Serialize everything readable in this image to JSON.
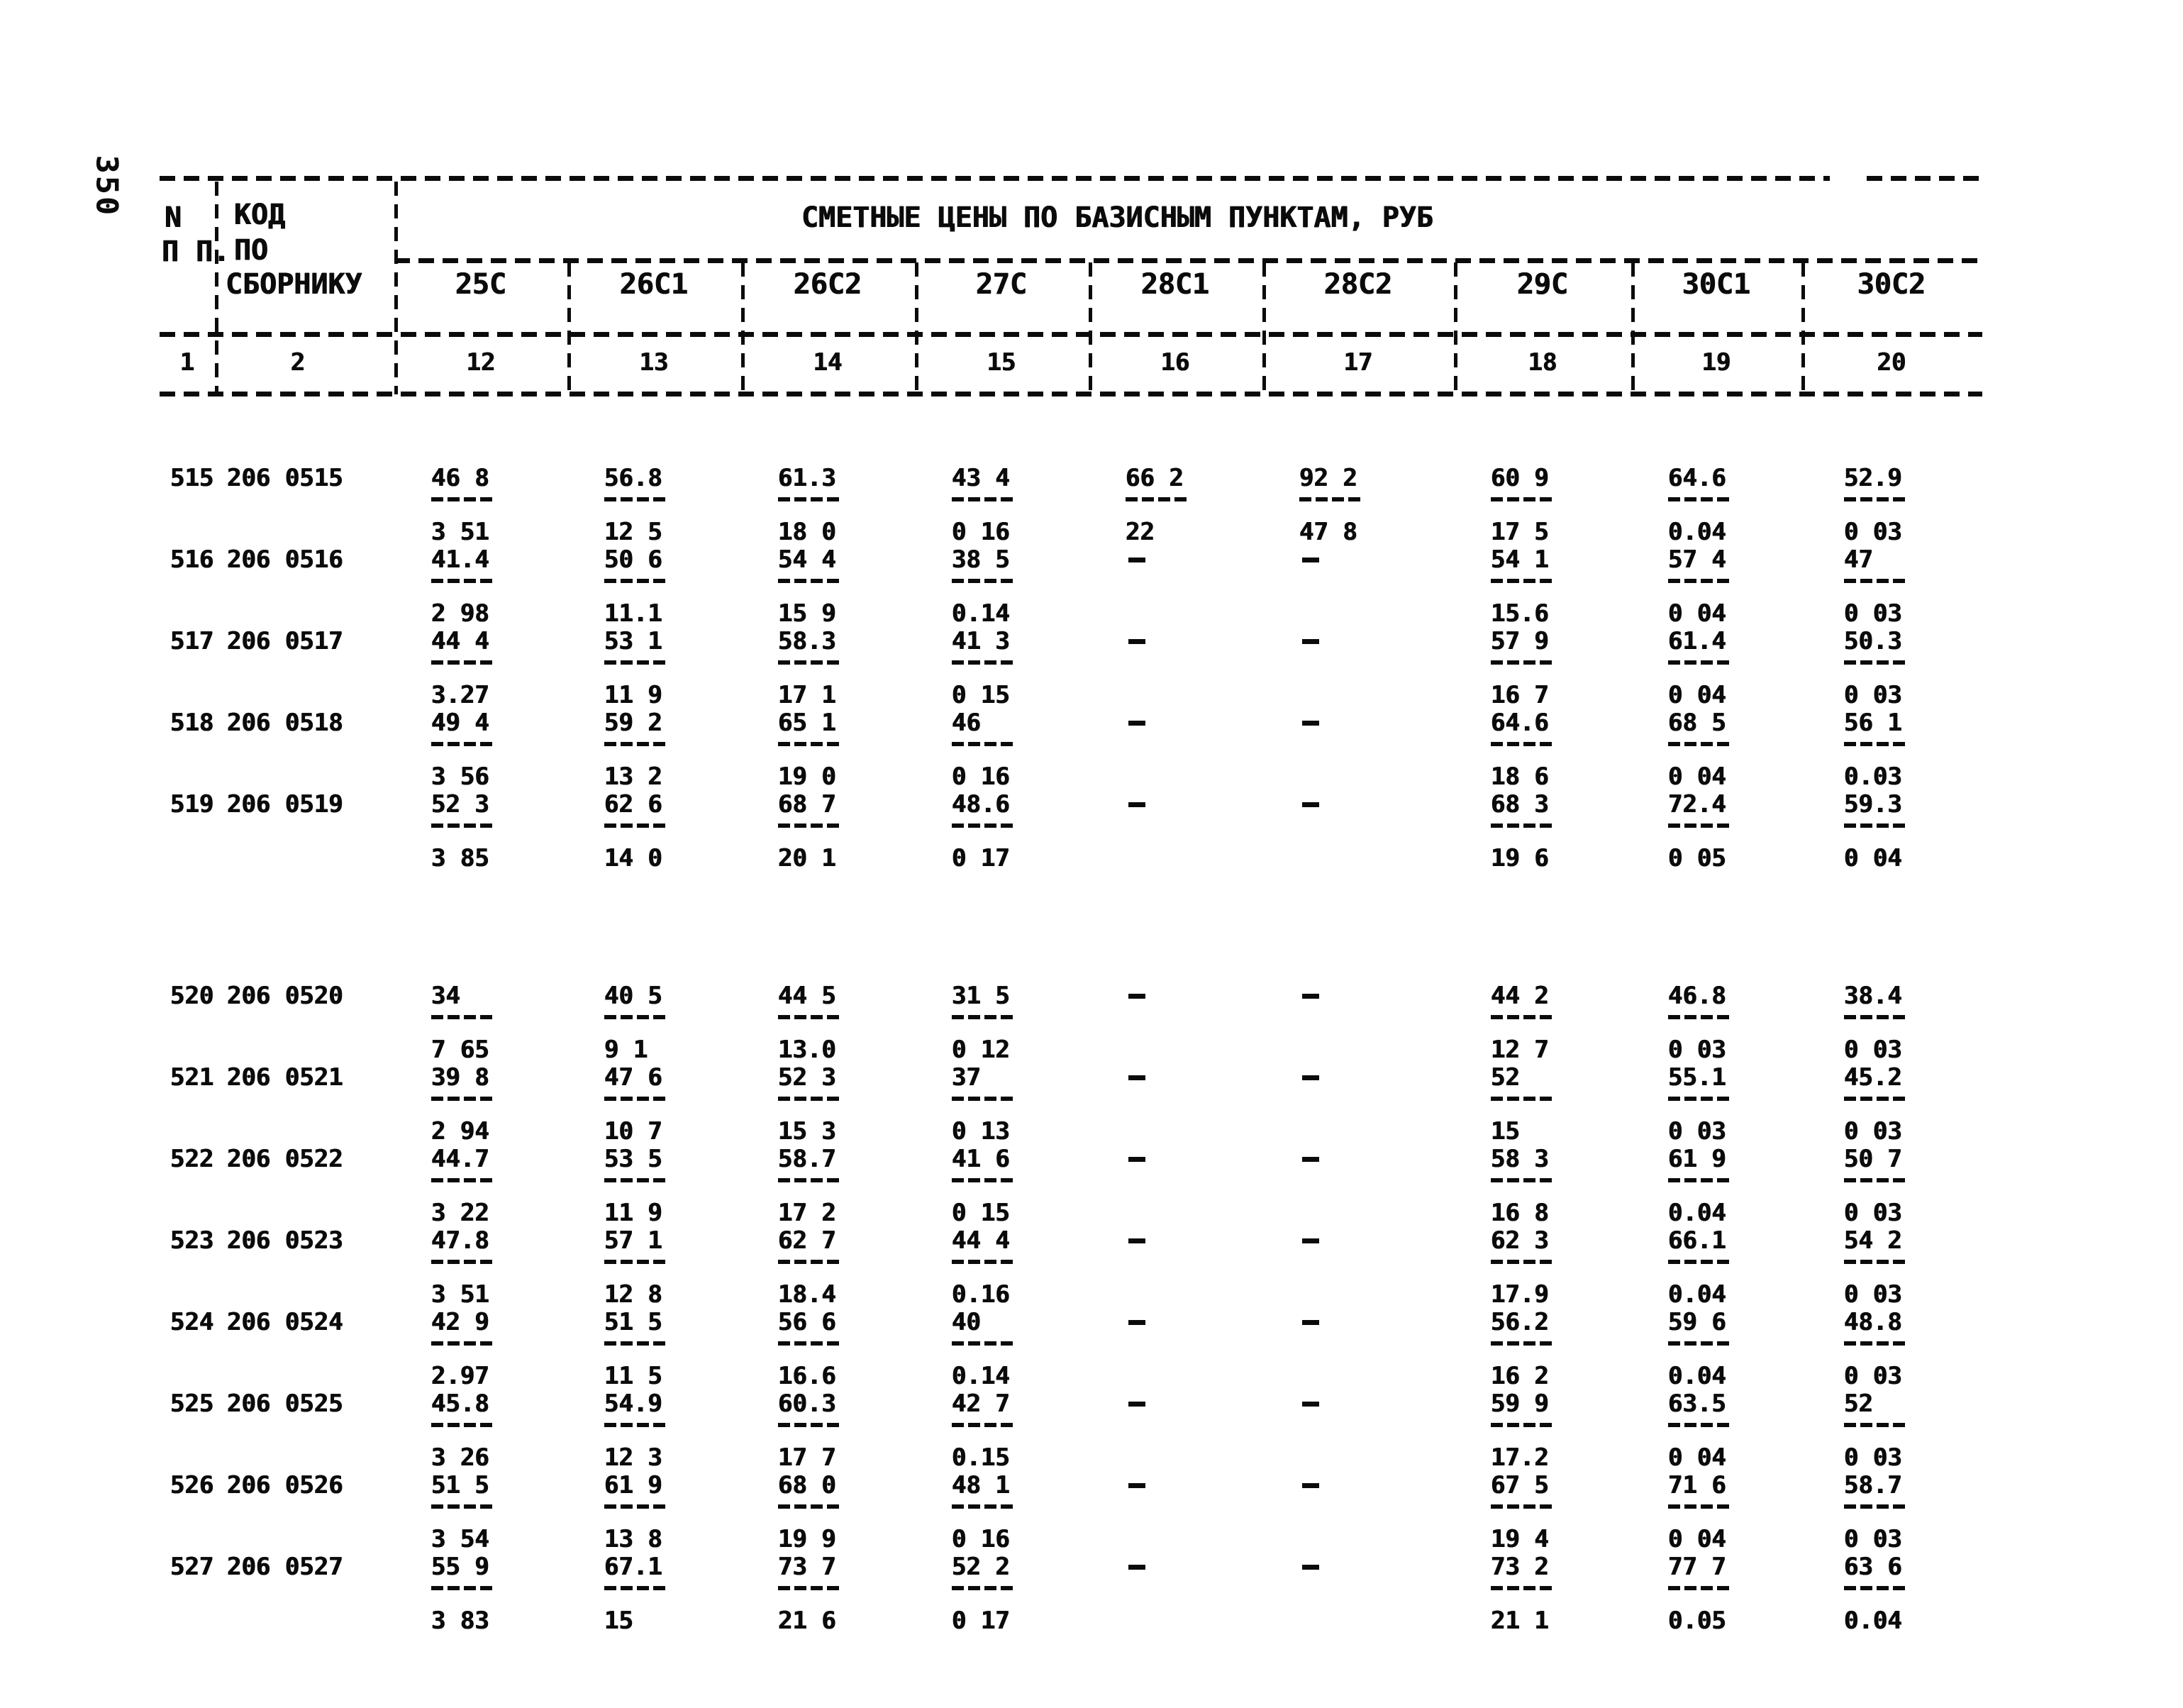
{
  "page_number": "350",
  "header": {
    "col1_line1": "N",
    "col1_line2": "П П.",
    "col2_line1": "КОД",
    "col2_line2": "ПО",
    "col2_line3": "СБОРНИКУ",
    "title": "СМЕТНЫЕ ЦЕНЫ ПО БАЗИСНЫМ ПУНКТАМ, РУБ",
    "columns": [
      "25С",
      "26С1",
      "26С2",
      "27С",
      "28С1",
      "28С2",
      "29С",
      "30С1",
      "30С2"
    ],
    "column_numbers": [
      "1",
      "2",
      "12",
      "13",
      "14",
      "15",
      "16",
      "17",
      "18",
      "19",
      "20"
    ]
  },
  "table": {
    "rows": [
      {
        "num": "515",
        "code": "206 0515",
        "cells": [
          [
            "46 8",
            "3 51"
          ],
          [
            "56.8",
            "12 5"
          ],
          [
            "61.3",
            "18 0"
          ],
          [
            "43 4",
            "0 16"
          ],
          [
            "66 2",
            "22"
          ],
          [
            "92 2",
            "47 8"
          ],
          [
            "60 9",
            "17 5"
          ],
          [
            "64.6",
            "0.04"
          ],
          [
            "52.9",
            "0 03"
          ]
        ]
      },
      {
        "num": "516",
        "code": "206 0516",
        "cells": [
          [
            "41.4",
            "2 98"
          ],
          [
            "50 6",
            "11.1"
          ],
          [
            "54 4",
            "15 9"
          ],
          [
            "38 5",
            "0.14"
          ],
          "-",
          "-",
          [
            "54 1",
            "15.6"
          ],
          [
            "57 4",
            "0 04"
          ],
          [
            "47",
            "0 03"
          ]
        ]
      },
      {
        "num": "517",
        "code": "206 0517",
        "cells": [
          [
            "44 4",
            "3.27"
          ],
          [
            "53 1",
            "11 9"
          ],
          [
            "58.3",
            "17 1"
          ],
          [
            "41 3",
            "0 15"
          ],
          "-",
          "-",
          [
            "57 9",
            "16 7"
          ],
          [
            "61.4",
            "0 04"
          ],
          [
            "50.3",
            "0 03"
          ]
        ]
      },
      {
        "num": "518",
        "code": "206 0518",
        "cells": [
          [
            "49 4",
            "3 56"
          ],
          [
            "59 2",
            "13 2"
          ],
          [
            "65 1",
            "19 0"
          ],
          [
            "46",
            "0 16"
          ],
          "-",
          "-",
          [
            "64.6",
            "18 6"
          ],
          [
            "68 5",
            "0 04"
          ],
          [
            "56 1",
            "0.03"
          ]
        ]
      },
      {
        "num": "519",
        "code": "206 0519",
        "cells": [
          [
            "52 3",
            "3 85"
          ],
          [
            "62 6",
            "14 0"
          ],
          [
            "68 7",
            "20 1"
          ],
          [
            "48.6",
            "0 17"
          ],
          "-",
          "-",
          [
            "68 3",
            "19 6"
          ],
          [
            "72.4",
            "0 05"
          ],
          [
            "59.3",
            "0 04"
          ]
        ]
      },
      {
        "num": "520",
        "code": "206 0520",
        "cells": [
          [
            "34",
            "7 65"
          ],
          [
            "40 5",
            "9 1"
          ],
          [
            "44 5",
            "13.0"
          ],
          [
            "31 5",
            "0 12"
          ],
          "-",
          "-",
          [
            "44 2",
            "12 7"
          ],
          [
            "46.8",
            "0 03"
          ],
          [
            "38.4",
            "0 03"
          ]
        ]
      },
      {
        "num": "521",
        "code": "206 0521",
        "cells": [
          [
            "39 8",
            "2 94"
          ],
          [
            "47 6",
            "10 7"
          ],
          [
            "52 3",
            "15 3"
          ],
          [
            "37",
            "0 13"
          ],
          "-",
          "-",
          [
            "52",
            "15"
          ],
          [
            "55.1",
            "0 03"
          ],
          [
            "45.2",
            "0 03"
          ]
        ]
      },
      {
        "num": "522",
        "code": "206 0522",
        "cells": [
          [
            "44.7",
            "3 22"
          ],
          [
            "53 5",
            "11 9"
          ],
          [
            "58.7",
            "17 2"
          ],
          [
            "41 6",
            "0 15"
          ],
          "-",
          "-",
          [
            "58 3",
            "16 8"
          ],
          [
            "61 9",
            "0.04"
          ],
          [
            "50 7",
            "0 03"
          ]
        ]
      },
      {
        "num": "523",
        "code": "206 0523",
        "cells": [
          [
            "47.8",
            "3 51"
          ],
          [
            "57 1",
            "12 8"
          ],
          [
            "62 7",
            "18.4"
          ],
          [
            "44 4",
            "0.16"
          ],
          "-",
          "-",
          [
            "62 3",
            "17.9"
          ],
          [
            "66.1",
            "0.04"
          ],
          [
            "54 2",
            "0 03"
          ]
        ]
      },
      {
        "num": "524",
        "code": "206 0524",
        "cells": [
          [
            "42 9",
            "2.97"
          ],
          [
            "51 5",
            "11 5"
          ],
          [
            "56 6",
            "16.6"
          ],
          [
            "40",
            "0.14"
          ],
          "-",
          "-",
          [
            "56.2",
            "16 2"
          ],
          [
            "59 6",
            "0.04"
          ],
          [
            "48.8",
            "0 03"
          ]
        ]
      },
      {
        "num": "525",
        "code": "206 0525",
        "cells": [
          [
            "45.8",
            "3 26"
          ],
          [
            "54.9",
            "12 3"
          ],
          [
            "60.3",
            "17 7"
          ],
          [
            "42 7",
            "0.15"
          ],
          "-",
          "-",
          [
            "59 9",
            "17.2"
          ],
          [
            "63.5",
            "0 04"
          ],
          [
            "52",
            "0 03"
          ]
        ]
      },
      {
        "num": "526",
        "code": "206 0526",
        "cells": [
          [
            "51 5",
            "3 54"
          ],
          [
            "61 9",
            "13 8"
          ],
          [
            "68 0",
            "19 9"
          ],
          [
            "48 1",
            "0 16"
          ],
          "-",
          "-",
          [
            "67 5",
            "19 4"
          ],
          [
            "71 6",
            "0 04"
          ],
          [
            "58.7",
            "0 03"
          ]
        ]
      },
      {
        "num": "527",
        "code": "206 0527",
        "cells": [
          [
            "55 9",
            "3 83"
          ],
          [
            "67.1",
            "15"
          ],
          [
            "73 7",
            "21 6"
          ],
          [
            "52 2",
            "0 17"
          ],
          "-",
          "-",
          [
            "73 2",
            "21 1"
          ],
          [
            "77 7",
            "0.05"
          ],
          [
            "63 6",
            "0.04"
          ]
        ]
      }
    ]
  }
}
